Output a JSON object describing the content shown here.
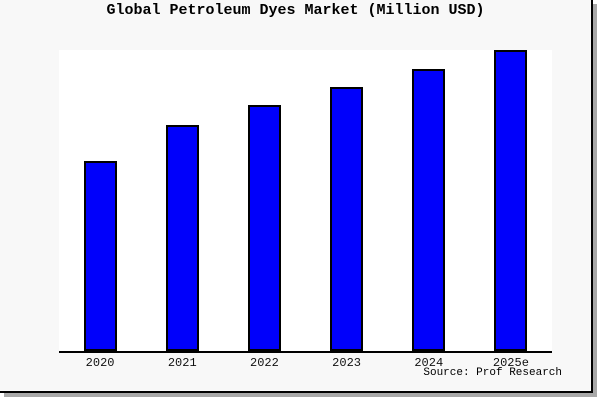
{
  "chart_data": {
    "type": "bar",
    "title": "Global Petroleum Dyes Market (Million USD)",
    "categories": [
      "2020",
      "2021",
      "2022",
      "2023",
      "2024",
      "2025e"
    ],
    "values": [
      190,
      226,
      246,
      264,
      282,
      301
    ],
    "xlabel": "",
    "ylabel": "",
    "ylim": [
      0,
      301
    ],
    "grid": false,
    "legend": null,
    "bar_color": "#0000fb",
    "bar_border_color": "#000000",
    "axis_color": "#000000",
    "figure_background": "#f8f8f8",
    "plot_background": "#ffffff",
    "shadow_color": "#a8a8a8"
  },
  "source": {
    "text": "Source: Prof Research"
  }
}
